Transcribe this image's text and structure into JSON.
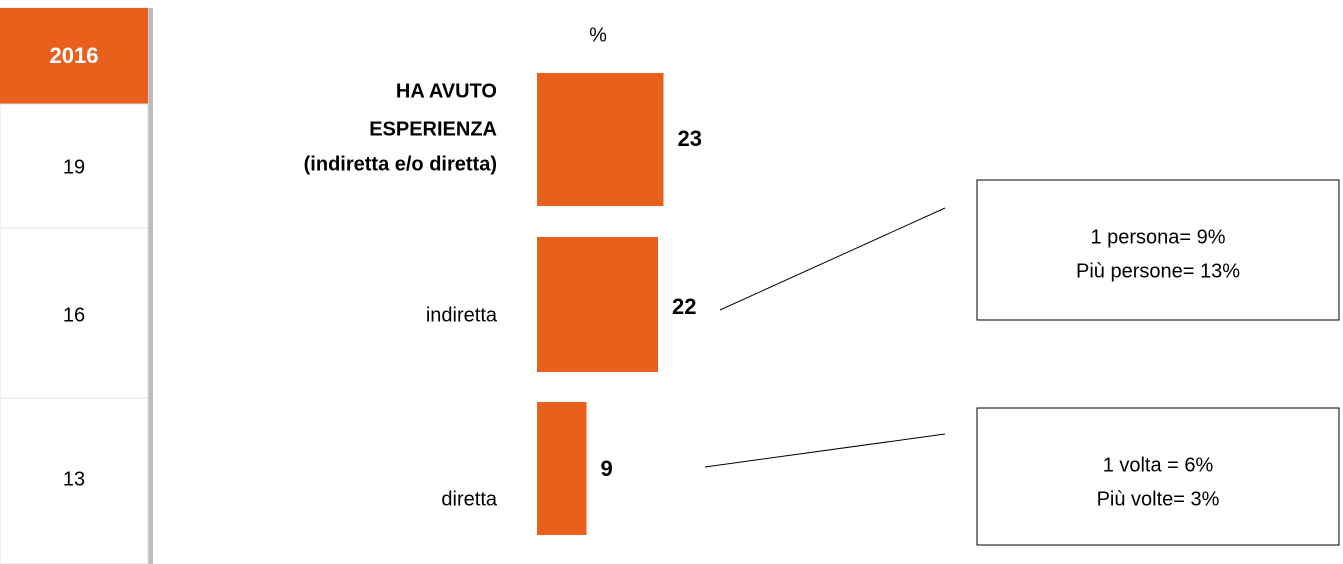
{
  "chart_data": {
    "type": "bar",
    "unit_label": "%",
    "categories": [
      [
        "HA AVUTO",
        "ESPERIENZA",
        "(indiretta e/o diretta)"
      ],
      [
        "indiretta"
      ],
      [
        "diretta"
      ]
    ],
    "values": [
      23,
      22,
      9
    ],
    "color": "#e8601c",
    "comparison": {
      "title": "2016",
      "values": [
        19,
        16,
        13
      ]
    },
    "annotations": [
      {
        "lines": [
          "1 persona= 9%",
          "Più persone= 13%"
        ]
      },
      {
        "lines": [
          "1 volta = 6%",
          "Più volte= 3%"
        ]
      }
    ]
  }
}
